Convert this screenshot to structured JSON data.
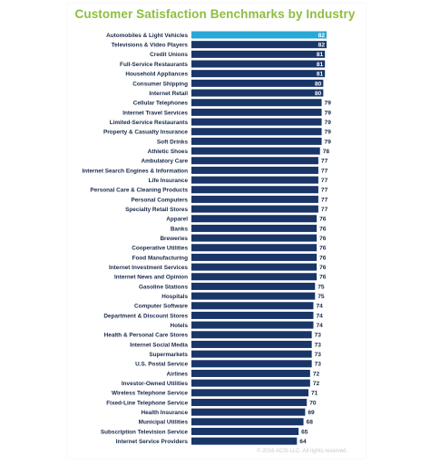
{
  "chart_data": {
    "type": "bar",
    "orientation": "horizontal",
    "title": "Customer Satisfaction Benchmarks by Industry",
    "categories": [
      "Automobiles & Light Vehicles",
      "Televisions & Video Players",
      "Credit Unions",
      "Full-Service Restaurants",
      "Household Appliances",
      "Consumer Shipping",
      "Internet Retail",
      "Cellular Telephones",
      "Internet Travel Services",
      "Limited-Service Restaurants",
      "Property & Casualty Insurance",
      "Soft Drinks",
      "Athletic Shoes",
      "Ambulatory Care",
      "Internet Search Engines & Information",
      "Life Insurance",
      "Personal Care & Cleaning Products",
      "Personal Computers",
      "Specialty Retail Stores",
      "Apparel",
      "Banks",
      "Breweries",
      "Cooperative Utilities",
      "Food Manufacturing",
      "Internet Investment Services",
      "Internet News and Opinion",
      "Gasoline Stations",
      "Hospitals",
      "Computer Software",
      "Department & Discount Stores",
      "Hotels",
      "Health & Personal Care Stores",
      "Internet Social Media",
      "Supermarkets",
      "U.S. Postal Service",
      "Airlines",
      "Investor-Owned Utilities",
      "Wireless Telephone Service",
      "Fixed-Line Telephone Service",
      "Health Insurance",
      "Municipal Utilities",
      "Subscription Television Service",
      "Internet Service Providers"
    ],
    "values": [
      82,
      82,
      81,
      81,
      81,
      80,
      80,
      79,
      79,
      79,
      79,
      79,
      78,
      77,
      77,
      77,
      77,
      77,
      77,
      76,
      76,
      76,
      76,
      76,
      76,
      76,
      75,
      75,
      74,
      74,
      74,
      73,
      73,
      73,
      73,
      72,
      72,
      71,
      70,
      69,
      68,
      65,
      64
    ],
    "highlight_index": 0,
    "xlim": [
      0,
      82
    ],
    "grid": false,
    "legend": "none"
  },
  "colors": {
    "bar": "#1a3668",
    "highlight": "#29a8d8",
    "title": "#8cbf3f",
    "label": "#1b2b4a"
  },
  "copyright": "© 2016 ACSI LLC. All rights reserved."
}
